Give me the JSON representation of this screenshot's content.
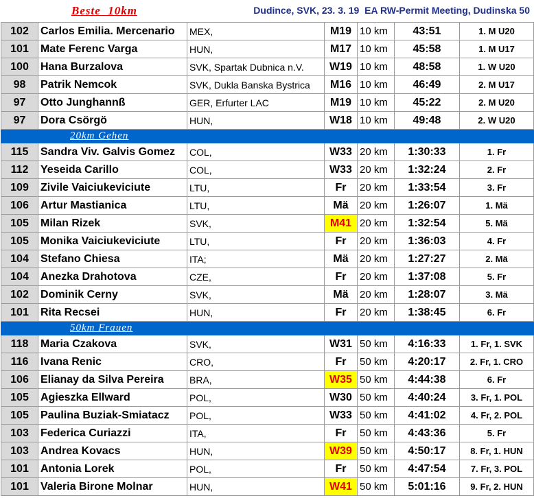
{
  "header": {
    "title": "Beste  10km",
    "meta": "Dudince, SVK, 23. 3. 19  EA RW-Permit Meeting, Dudinska 50"
  },
  "sections": [
    {
      "label": "",
      "rows": [
        {
          "num": "102",
          "name": "Carlos Emilia. Mercenario",
          "club": "MEX,",
          "cat": "M19",
          "hl": false,
          "dist": "10 km",
          "time": "43:51",
          "rank": "1. M U20"
        },
        {
          "num": "101",
          "name": "Mate Ferenc Varga",
          "club": "HUN,",
          "cat": "M17",
          "hl": false,
          "dist": "10 km",
          "time": "45:58",
          "rank": "1. M U17"
        },
        {
          "num": "100",
          "name": "Hana Burzalova",
          "club": "SVK, Spartak Dubnica n.V.",
          "cat": "W19",
          "hl": false,
          "dist": "10 km",
          "time": "48:58",
          "rank": "1. W U20"
        },
        {
          "num": "98",
          "name": "Patrik Nemcok",
          "club": "SVK, Dukla Banska Bystrica",
          "cat": "M16",
          "hl": false,
          "dist": "10 km",
          "time": "46:49",
          "rank": "2. M U17"
        },
        {
          "num": "97",
          "name": "Otto Junghannß",
          "club": "GER, Erfurter LAC",
          "cat": "M19",
          "hl": false,
          "dist": "10 km",
          "time": "45:22",
          "rank": "2. M U20"
        },
        {
          "num": "97",
          "name": "Dora Csörgö",
          "club": "HUN,",
          "cat": "W18",
          "hl": false,
          "dist": "10 km",
          "time": "49:48",
          "rank": "2. W U20"
        }
      ]
    },
    {
      "label": "20km Gehen",
      "rows": [
        {
          "num": "115",
          "name": "Sandra Viv. Galvis Gomez",
          "club": "COL,",
          "cat": "W33",
          "hl": false,
          "dist": "20 km",
          "time": "1:30:33",
          "rank": "1. Fr"
        },
        {
          "num": "112",
          "name": "Yeseida Carillo",
          "club": "COL,",
          "cat": "W33",
          "hl": false,
          "dist": "20 km",
          "time": "1:32:24",
          "rank": "2. Fr"
        },
        {
          "num": "109",
          "name": "Zivile Vaiciukeviciute",
          "club": "LTU,",
          "cat": "Fr",
          "hl": false,
          "dist": "20 km",
          "time": "1:33:54",
          "rank": "3. Fr"
        },
        {
          "num": "106",
          "name": "Artur Mastianica",
          "club": "LTU,",
          "cat": "Mä",
          "hl": false,
          "dist": "20 km",
          "time": "1:26:07",
          "rank": "1. Mä"
        },
        {
          "num": "105",
          "name": "Milan Rizek",
          "club": "SVK,",
          "cat": "M41",
          "hl": true,
          "dist": "20 km",
          "time": "1:32:54",
          "rank": "5. Mä"
        },
        {
          "num": "105",
          "name": "Monika Vaiciukeviciute",
          "club": "LTU,",
          "cat": "Fr",
          "hl": false,
          "dist": "20 km",
          "time": "1:36:03",
          "rank": "4. Fr"
        },
        {
          "num": "104",
          "name": "Stefano Chiesa",
          "club": "ITA;",
          "cat": "Mä",
          "hl": false,
          "dist": "20 km",
          "time": "1:27:27",
          "rank": "2. Mä"
        },
        {
          "num": "104",
          "name": "Anezka Drahotova",
          "club": "CZE,",
          "cat": "Fr",
          "hl": false,
          "dist": "20 km",
          "time": "1:37:08",
          "rank": "5. Fr"
        },
        {
          "num": "102",
          "name": "Dominik Cerny",
          "club": "SVK,",
          "cat": "Mä",
          "hl": false,
          "dist": "20 km",
          "time": "1:28:07",
          "rank": "3. Mä"
        },
        {
          "num": "101",
          "name": "Rita Recsei",
          "club": "HUN,",
          "cat": "Fr",
          "hl": false,
          "dist": "20 km",
          "time": "1:38:45",
          "rank": "6. Fr"
        }
      ]
    },
    {
      "label": "50km Frauen",
      "rows": [
        {
          "num": "118",
          "name": "Maria Czakova",
          "club": "SVK,",
          "cat": "W31",
          "hl": false,
          "dist": "50 km",
          "time": "4:16:33",
          "rank": "1. Fr, 1. SVK"
        },
        {
          "num": "116",
          "name": "Ivana Renic",
          "club": "CRO,",
          "cat": "Fr",
          "hl": false,
          "dist": "50 km",
          "time": "4:20:17",
          "rank": "2. Fr, 1. CRO"
        },
        {
          "num": "106",
          "name": "Elianay da Silva Pereira",
          "club": "BRA,",
          "cat": "W35",
          "hl": true,
          "dist": "50 km",
          "time": "4:44:38",
          "rank": "6. Fr"
        },
        {
          "num": "105",
          "name": "Agieszka Ellward",
          "club": "POL,",
          "cat": "W30",
          "hl": false,
          "dist": "50 km",
          "time": "4:40:24",
          "rank": "3. Fr, 1. POL"
        },
        {
          "num": "105",
          "name": "Paulina Buziak-Smiatacz",
          "club": "POL,",
          "cat": "W33",
          "hl": false,
          "dist": "50 km",
          "time": "4:41:02",
          "rank": "4. Fr, 2. POL"
        },
        {
          "num": "103",
          "name": "Federica Curiazzi",
          "club": "ITA,",
          "cat": "Fr",
          "hl": false,
          "dist": "50 km",
          "time": "4:43:36",
          "rank": "5. Fr"
        },
        {
          "num": "103",
          "name": "Andrea Kovacs",
          "club": "HUN,",
          "cat": "W39",
          "hl": true,
          "dist": "50 km",
          "time": "4:50:17",
          "rank": "8. Fr, 1. HUN"
        },
        {
          "num": "101",
          "name": "Antonia Lorek",
          "club": "POL,",
          "cat": "Fr",
          "hl": false,
          "dist": "50 km",
          "time": "4:47:54",
          "rank": "7. Fr, 3. POL"
        },
        {
          "num": "101",
          "name": "Valeria Birone Molnar",
          "club": "HUN,",
          "cat": "W41",
          "hl": true,
          "dist": "50 km",
          "time": "5:01:16",
          "rank": "9. Fr, 2. HUN"
        }
      ]
    }
  ]
}
